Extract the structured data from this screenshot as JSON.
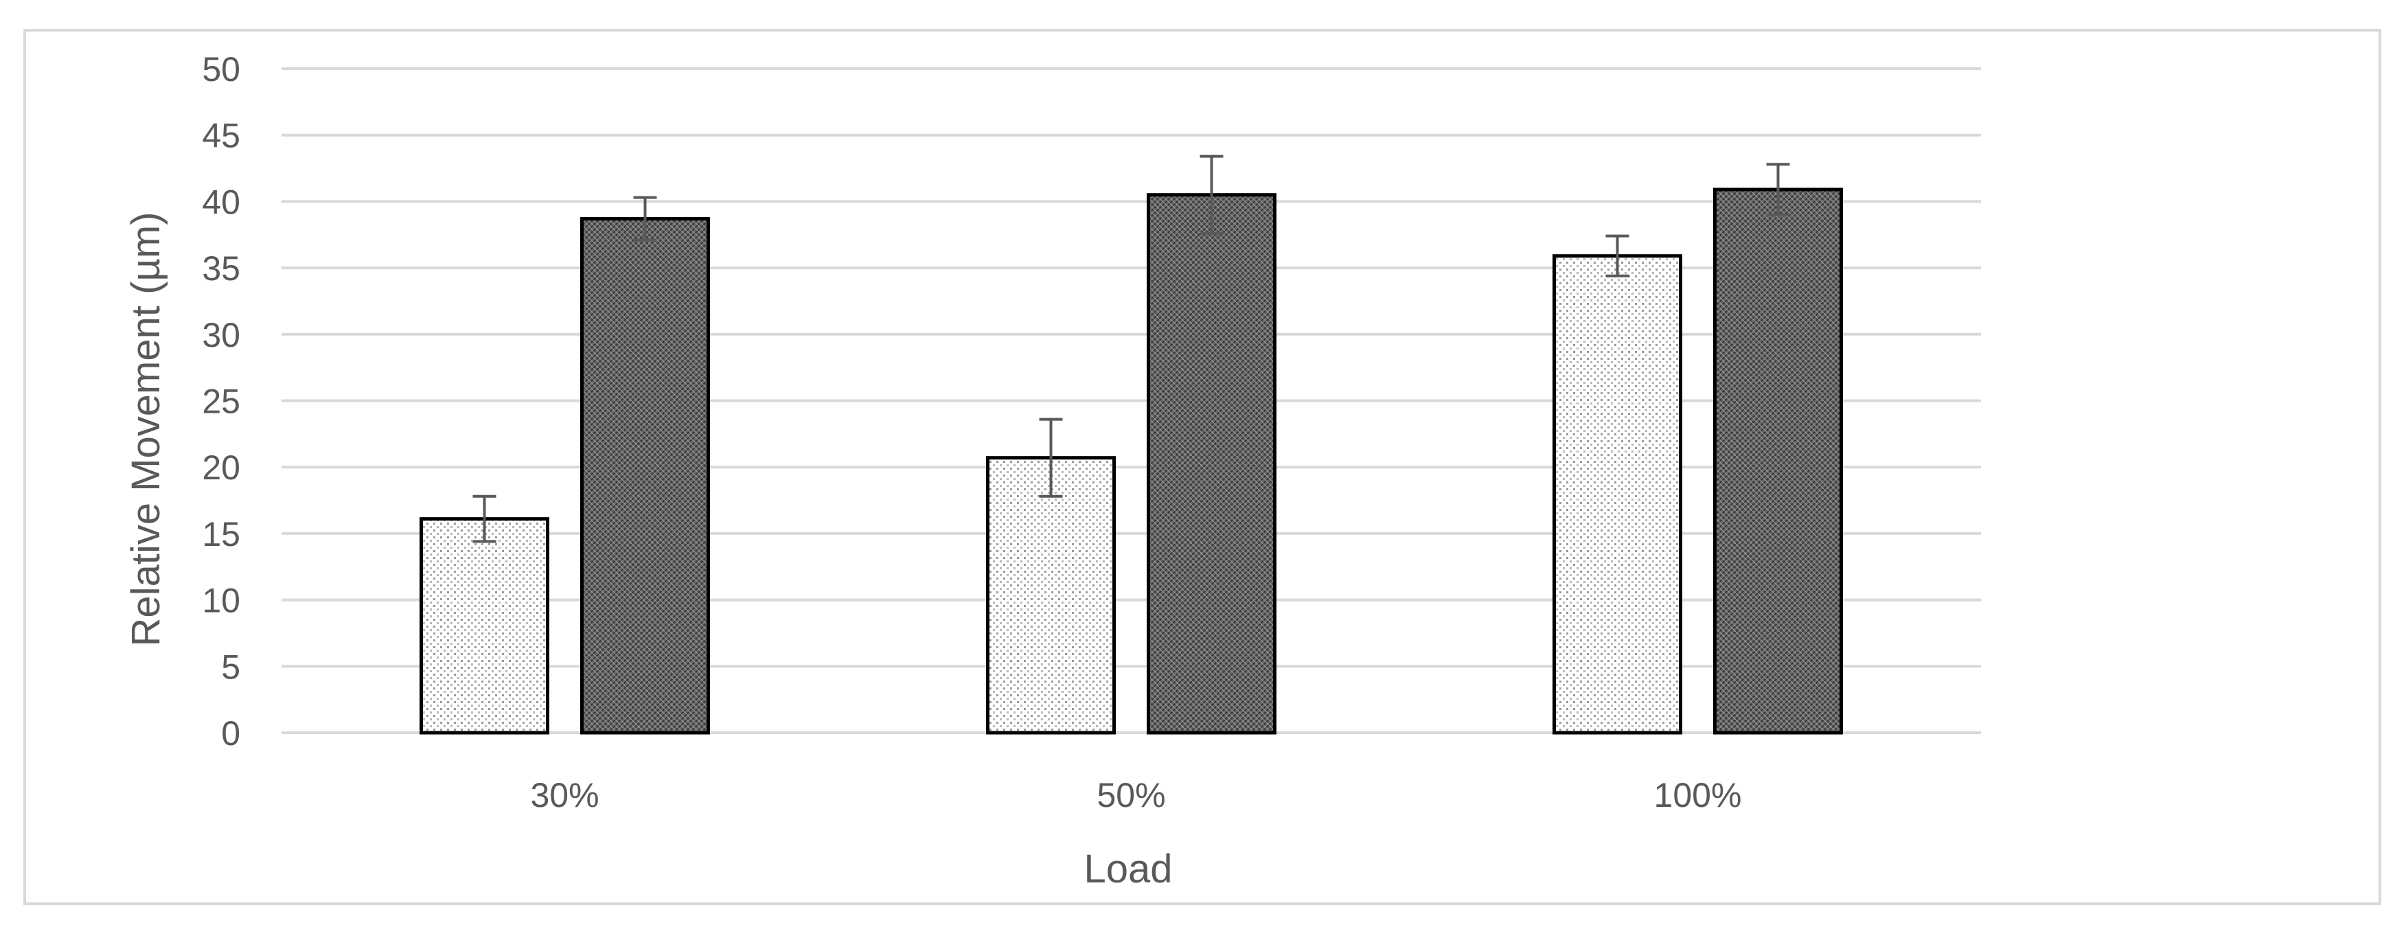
{
  "chart_data": {
    "type": "bar",
    "title": "",
    "xlabel": "Load",
    "ylabel": "Relative Movement (µm)",
    "categories": [
      "30%",
      "50%",
      "100%"
    ],
    "ylim": [
      0,
      50
    ],
    "yticks": [
      0,
      5,
      10,
      15,
      20,
      25,
      30,
      35,
      40,
      45,
      50
    ],
    "grid": true,
    "legend": "none",
    "series": [
      {
        "values": [
          16.1,
          20.7,
          35.9
        ],
        "errors": [
          1.7,
          2.9,
          1.5
        ],
        "fill": "light-dotted",
        "color": "#f4f4f4"
      },
      {
        "values": [
          38.7,
          40.5,
          40.9
        ],
        "errors": [
          1.6,
          2.9,
          1.9
        ],
        "fill": "dark-hatched",
        "color": "#6f6f6f"
      }
    ],
    "colors": {
      "gridline": "#d9d9d9",
      "frame": "#d9d9d9",
      "text": "#595959",
      "bar_outline": "#000000",
      "error_bar": "#595959"
    }
  }
}
